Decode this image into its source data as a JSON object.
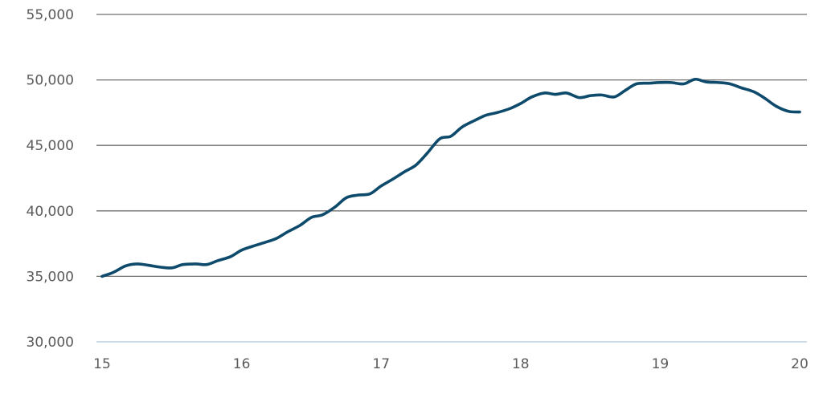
{
  "chart_data": {
    "type": "line",
    "title": "",
    "xlabel": "",
    "ylabel": "",
    "xlim": [
      15,
      20
    ],
    "ylim": [
      30000,
      55000
    ],
    "x_ticks": [
      15,
      16,
      17,
      18,
      19,
      20
    ],
    "x_tick_labels": [
      "15",
      "16",
      "17",
      "18",
      "19",
      "20"
    ],
    "y_ticks": [
      30000,
      35000,
      40000,
      45000,
      50000,
      55000
    ],
    "y_tick_labels": [
      "30,000",
      "35,000",
      "40,000",
      "45,000",
      "50,000",
      "55,000"
    ],
    "grid": true,
    "legend": false,
    "colors": {
      "series": "#0d4a6b",
      "grid": "#6f6f6f",
      "baseline": "#b8d0e6",
      "text": "#5a5a5a"
    },
    "series": [
      {
        "x": [
          15.0,
          15.08,
          15.17,
          15.25,
          15.33,
          15.42,
          15.5,
          15.58,
          15.67,
          15.75,
          15.83,
          15.92,
          16.0,
          16.08,
          16.17,
          16.25,
          16.33,
          16.42,
          16.5,
          16.58,
          16.67,
          16.75,
          16.83,
          16.92,
          17.0,
          17.08,
          17.17,
          17.25,
          17.33,
          17.42,
          17.5,
          17.58,
          17.67,
          17.75,
          17.83,
          17.92,
          18.0,
          18.08,
          18.17,
          18.25,
          18.33,
          18.42,
          18.5,
          18.58,
          18.67,
          18.75,
          18.83,
          18.92,
          19.0,
          19.08,
          19.17,
          19.25,
          19.33,
          19.42,
          19.5,
          19.58,
          19.67,
          19.75,
          19.83,
          19.92,
          20.0
        ],
        "values": [
          35000,
          35300,
          35800,
          35950,
          35850,
          35700,
          35650,
          35900,
          35950,
          35900,
          36200,
          36500,
          37000,
          37300,
          37600,
          37900,
          38400,
          38900,
          39500,
          39700,
          40300,
          41000,
          41200,
          41300,
          41900,
          42400,
          43000,
          43500,
          44400,
          45500,
          45700,
          46400,
          46900,
          47300,
          47500,
          47800,
          48200,
          48700,
          49000,
          48900,
          49000,
          48650,
          48800,
          48850,
          48700,
          49200,
          49700,
          49750,
          49800,
          49800,
          49700,
          50050,
          49850,
          49800,
          49700,
          49400,
          49100,
          48600,
          48000,
          47600,
          47550
        ]
      }
    ]
  }
}
